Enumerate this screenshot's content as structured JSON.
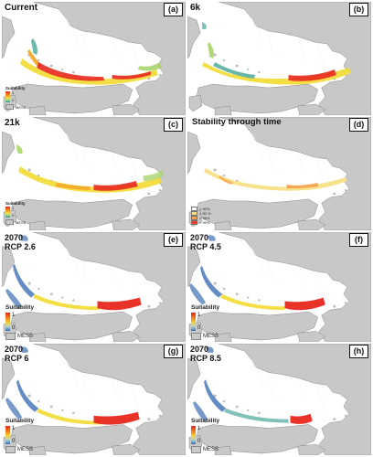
{
  "panels": [
    {
      "id": "a",
      "label": "(a)",
      "title": [
        "Current"
      ],
      "legend": {
        "type": "suitability",
        "title": "Suitability",
        "high": "1",
        "low": "0",
        "mess": "MESS"
      }
    },
    {
      "id": "b",
      "label": "(b)",
      "title": [
        "6k"
      ],
      "legend": null
    },
    {
      "id": "c",
      "label": "(c)",
      "title": [
        "21k"
      ],
      "legend": {
        "type": "suitability",
        "title": "Suitability",
        "high": "1",
        "low": "0",
        "mess": "MESS"
      }
    },
    {
      "id": "d",
      "label": "(d)",
      "title": [
        "Stability through time"
      ],
      "legend": {
        "type": "stability",
        "items": [
          {
            "label": "< 90%",
            "color": "#ffffff"
          },
          {
            "label": "> 90 %",
            "color": "#f7e18a"
          },
          {
            "label": "> 95%",
            "color": "#f5a04a"
          },
          {
            "label": "> 99%",
            "color": "#e8402a"
          }
        ]
      }
    },
    {
      "id": "e",
      "label": "(e)",
      "title": [
        "2070",
        "RCP 2.6"
      ],
      "legend": {
        "type": "suitability-cool",
        "title": "Suitability",
        "high": "1",
        "low": "0",
        "mess": "MESS"
      }
    },
    {
      "id": "f",
      "label": "(f)",
      "title": [
        "2070",
        "RCP 4.5"
      ],
      "legend": {
        "type": "suitability-cool",
        "title": "Suitability",
        "high": "1",
        "low": "0",
        "mess": "MESS"
      }
    },
    {
      "id": "g",
      "label": "(g)",
      "title": [
        "2070",
        "RCP 6"
      ],
      "legend": {
        "type": "suitability-cool",
        "title": "Suitability",
        "high": "1",
        "low": "0",
        "mess": "MESS"
      }
    },
    {
      "id": "h",
      "label": "(h)",
      "title": [
        "2070",
        "RCP 8.5"
      ],
      "legend": {
        "type": "suitability-cool",
        "title": "Suitability",
        "high": "1",
        "low": "0",
        "mess": "MESS"
      }
    }
  ],
  "colors": {
    "land": "#c8c8c8",
    "outline": "#777777",
    "high": "#e8281e",
    "mid": "#f4a92a",
    "moderate": "#f3dc3c",
    "low": "#a8d46a",
    "teal": "#4aa89a",
    "blue": "#3d6fb5",
    "stability_light": "#f7e18a",
    "stability_mid": "#f5a04a"
  }
}
